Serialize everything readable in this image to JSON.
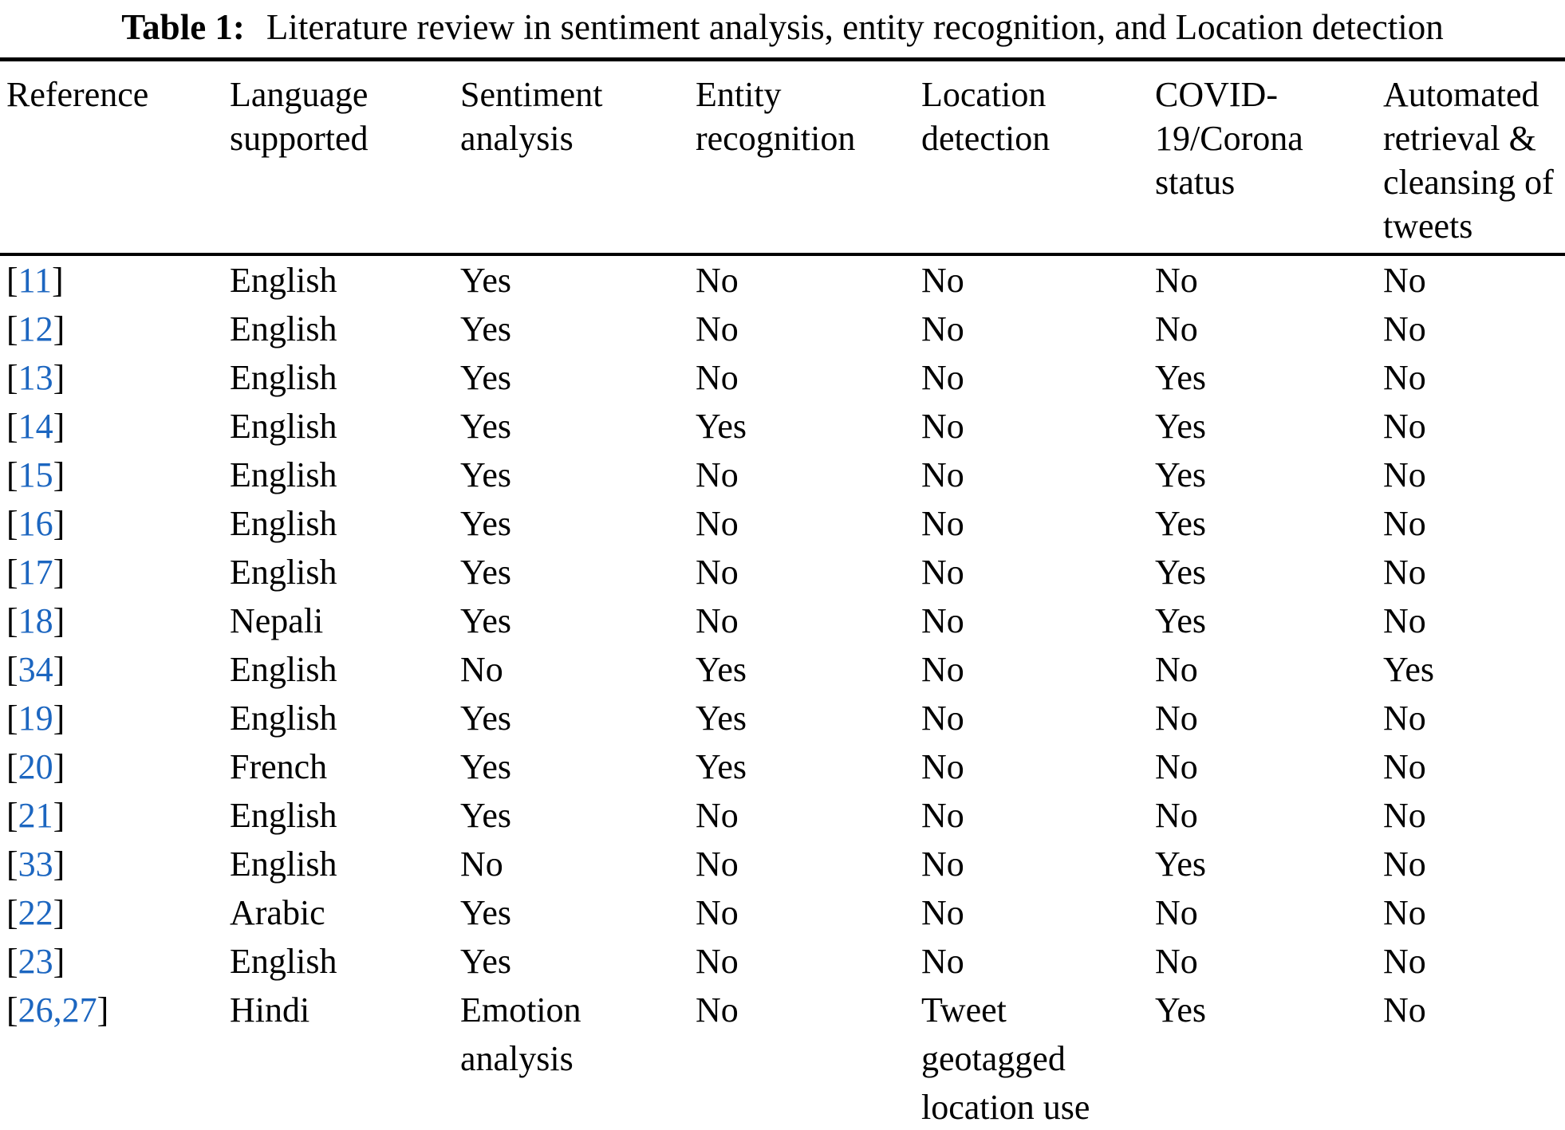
{
  "caption": {
    "label": "Table 1:",
    "text": "Literature review in sentiment analysis, entity recognition, and Location detection"
  },
  "colors": {
    "reference_link_blue": "#1c66c0",
    "text": "#000000",
    "background": "#ffffff",
    "rules": "#000000"
  },
  "table": {
    "columns": [
      "Reference",
      "Language supported",
      "Sentiment analysis",
      "Entity recognition",
      "Location detection",
      "COVID-19/Corona status",
      "Automated retrieval & cleansing of tweets"
    ],
    "rows": [
      {
        "ref": "[11]",
        "values": [
          "English",
          "Yes",
          "No",
          "No",
          "No",
          "No"
        ]
      },
      {
        "ref": "[12]",
        "values": [
          "English",
          "Yes",
          "No",
          "No",
          "No",
          "No"
        ]
      },
      {
        "ref": "[13]",
        "values": [
          "English",
          "Yes",
          "No",
          "No",
          "Yes",
          "No"
        ]
      },
      {
        "ref": "[14]",
        "values": [
          "English",
          "Yes",
          "Yes",
          "No",
          "Yes",
          "No"
        ]
      },
      {
        "ref": "[15]",
        "values": [
          "English",
          "Yes",
          "No",
          "No",
          "Yes",
          "No"
        ]
      },
      {
        "ref": "[16]",
        "values": [
          "English",
          "Yes",
          "No",
          "No",
          "Yes",
          "No"
        ]
      },
      {
        "ref": "[17]",
        "values": [
          "English",
          "Yes",
          "No",
          "No",
          "Yes",
          "No"
        ]
      },
      {
        "ref": "[18]",
        "values": [
          "Nepali",
          "Yes",
          "No",
          "No",
          "Yes",
          "No"
        ]
      },
      {
        "ref": "[34]",
        "values": [
          "English",
          "No",
          "Yes",
          "No",
          "No",
          "Yes"
        ]
      },
      {
        "ref": "[19]",
        "values": [
          "English",
          "Yes",
          "Yes",
          "No",
          "No",
          "No"
        ]
      },
      {
        "ref": "[20]",
        "values": [
          "French",
          "Yes",
          "Yes",
          "No",
          "No",
          "No"
        ]
      },
      {
        "ref": "[21]",
        "values": [
          "English",
          "Yes",
          "No",
          "No",
          "No",
          "No"
        ]
      },
      {
        "ref": "[33]",
        "values": [
          "English",
          "No",
          "No",
          "No",
          "Yes",
          "No"
        ]
      },
      {
        "ref": "[22]",
        "values": [
          "Arabic",
          "Yes",
          "No",
          "No",
          "No",
          "No"
        ]
      },
      {
        "ref": "[23]",
        "values": [
          "English",
          "Yes",
          "No",
          "No",
          "No",
          "No"
        ]
      },
      {
        "ref": "[26,27]",
        "values": [
          "Hindi",
          "Emotion analysis",
          "No",
          "Tweet geotagged location use",
          "Yes",
          "No"
        ]
      }
    ]
  }
}
